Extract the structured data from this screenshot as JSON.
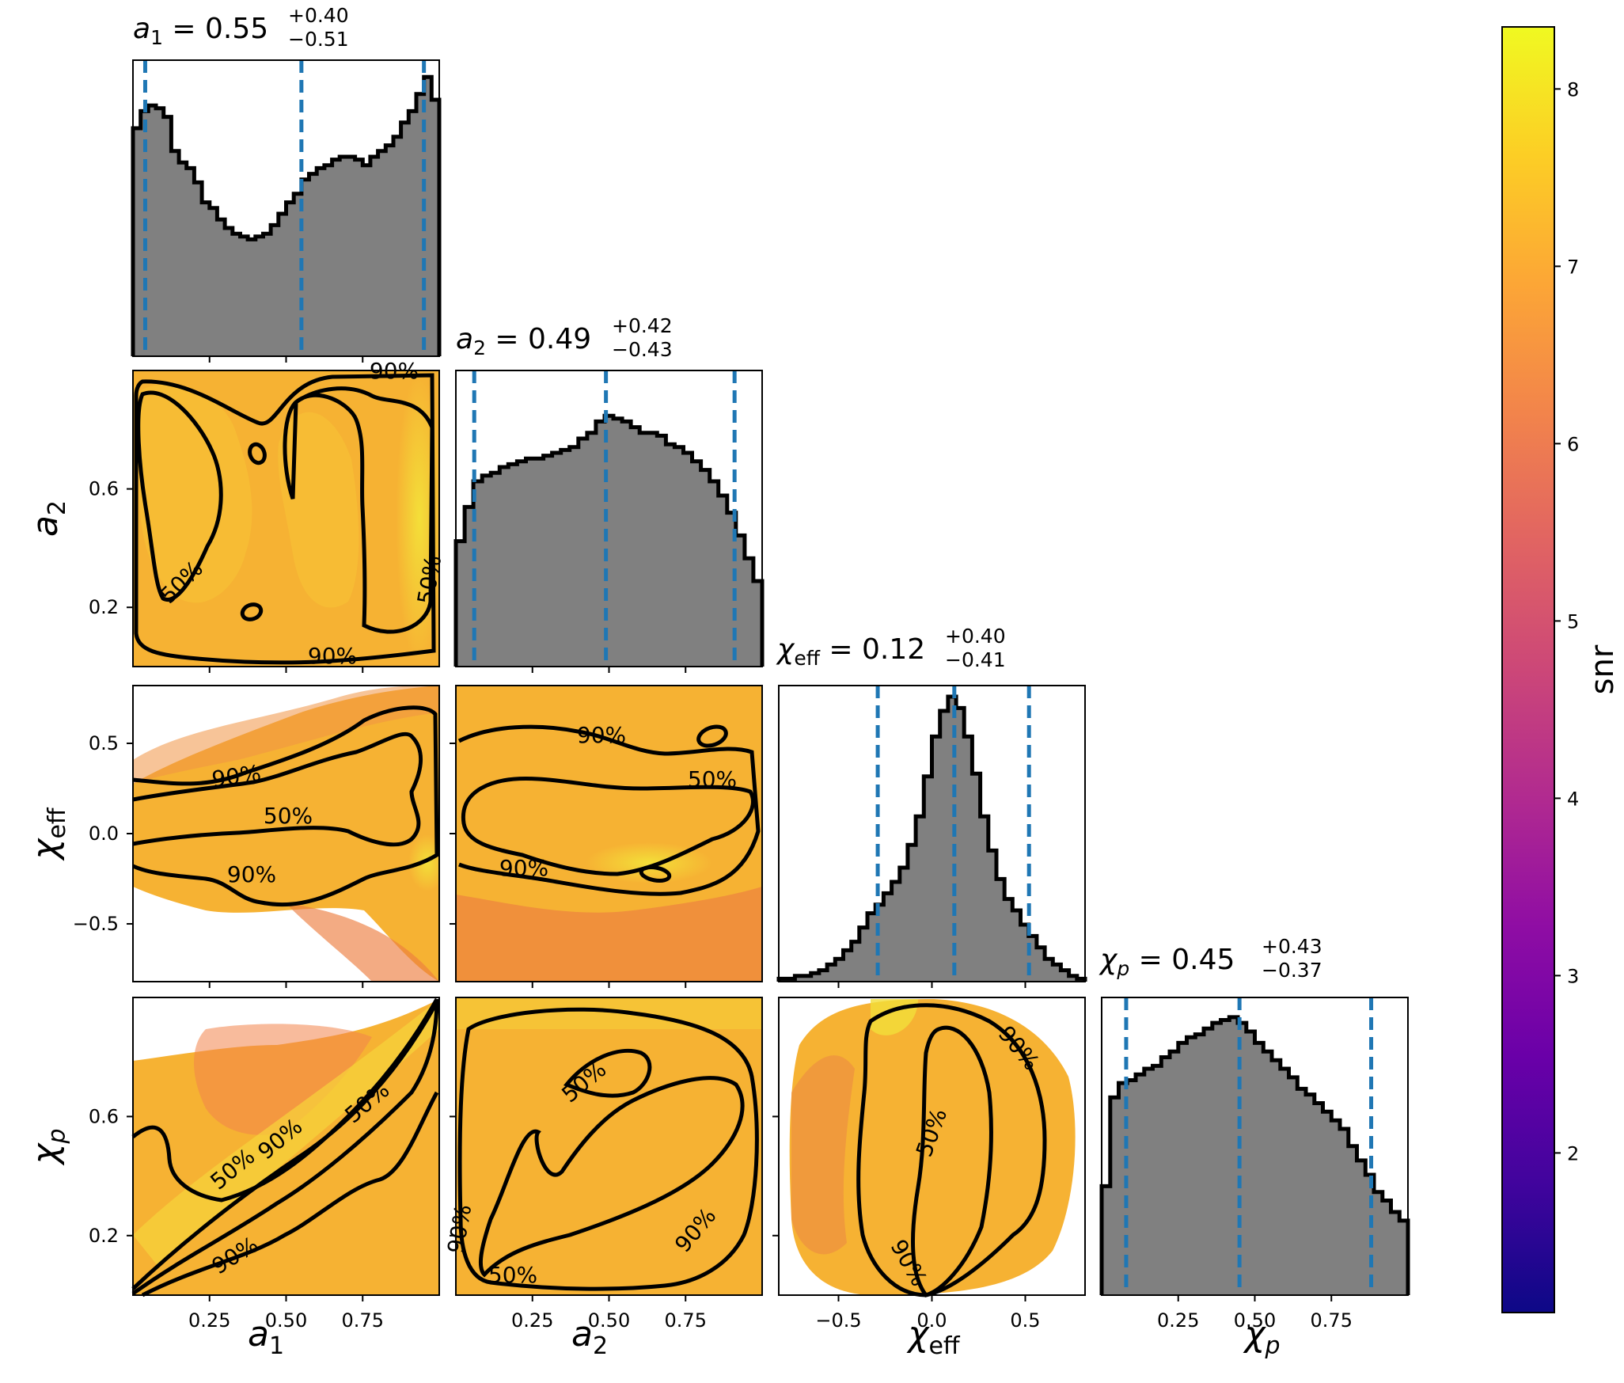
{
  "chart_data": {
    "type": "corner",
    "parameters": [
      {
        "key": "a1",
        "label_main": "a",
        "label_sub": "1",
        "title": {
          "median": "0.55",
          "plus": "+0.40",
          "minus": "−0.51"
        },
        "range": [
          0,
          1
        ],
        "quantiles": [
          0.04,
          0.55,
          0.95
        ]
      },
      {
        "key": "a2",
        "label_main": "a",
        "label_sub": "2",
        "title": {
          "median": "0.49",
          "plus": "+0.42",
          "minus": "−0.43"
        },
        "range": [
          0,
          1
        ],
        "quantiles": [
          0.06,
          0.49,
          0.91
        ]
      },
      {
        "key": "chi_eff",
        "label_main": "χ",
        "label_sub": "eff",
        "title": {
          "median": "0.12",
          "plus": "+0.40",
          "minus": "−0.41"
        },
        "range": [
          -0.82,
          0.82
        ],
        "quantiles": [
          -0.29,
          0.12,
          0.52
        ]
      },
      {
        "key": "chi_p",
        "label_main": "χ",
        "label_sub": "p",
        "title": {
          "median": "0.45",
          "plus": "+0.43",
          "minus": "−0.37"
        },
        "range": [
          0,
          1
        ],
        "quantiles": [
          0.08,
          0.45,
          0.88
        ]
      }
    ],
    "ticks": {
      "a1": [
        "0.25",
        "0.50",
        "0.75"
      ],
      "a2": [
        "0.25",
        "0.50",
        "0.75"
      ],
      "a2_y": [
        "0.2",
        "0.6"
      ],
      "chi_eff": [
        "−0.5",
        "0.0",
        "0.5"
      ],
      "chi_p": [
        "0.25",
        "0.50",
        "0.75"
      ],
      "chi_p_y": [
        "0.2",
        "0.6"
      ]
    },
    "histograms": {
      "a1": [
        0.8,
        0.86,
        0.88,
        0.87,
        0.84,
        0.72,
        0.68,
        0.66,
        0.61,
        0.54,
        0.52,
        0.48,
        0.45,
        0.43,
        0.42,
        0.41,
        0.42,
        0.43,
        0.46,
        0.5,
        0.54,
        0.57,
        0.62,
        0.64,
        0.66,
        0.67,
        0.69,
        0.7,
        0.7,
        0.69,
        0.67,
        0.7,
        0.72,
        0.74,
        0.77,
        0.82,
        0.86,
        0.92,
        0.98,
        0.9
      ],
      "a2": [
        0.44,
        0.56,
        0.65,
        0.67,
        0.68,
        0.7,
        0.71,
        0.72,
        0.73,
        0.73,
        0.74,
        0.75,
        0.76,
        0.77,
        0.8,
        0.82,
        0.86,
        0.88,
        0.87,
        0.86,
        0.84,
        0.82,
        0.82,
        0.81,
        0.78,
        0.77,
        0.75,
        0.72,
        0.69,
        0.65,
        0.6,
        0.54,
        0.46,
        0.38,
        0.3
      ],
      "chi_eff": [
        0.01,
        0.01,
        0.02,
        0.02,
        0.03,
        0.04,
        0.06,
        0.08,
        0.11,
        0.14,
        0.19,
        0.24,
        0.27,
        0.31,
        0.35,
        0.4,
        0.48,
        0.58,
        0.72,
        0.86,
        0.95,
        1.0,
        0.96,
        0.86,
        0.73,
        0.58,
        0.46,
        0.36,
        0.29,
        0.25,
        0.2,
        0.16,
        0.12,
        0.08,
        0.06,
        0.04,
        0.02,
        0.01
      ],
      "chi_p": [
        0.38,
        0.69,
        0.74,
        0.75,
        0.77,
        0.79,
        0.8,
        0.83,
        0.85,
        0.88,
        0.9,
        0.91,
        0.93,
        0.95,
        0.96,
        0.97,
        0.95,
        0.92,
        0.88,
        0.85,
        0.82,
        0.79,
        0.76,
        0.72,
        0.7,
        0.67,
        0.64,
        0.61,
        0.58,
        0.52,
        0.47,
        0.42,
        0.36,
        0.33,
        0.29,
        0.26
      ]
    },
    "contour_labels": [
      "50%",
      "90%"
    ],
    "colorbar": {
      "label": "snr",
      "range": [
        1.1,
        8.35
      ],
      "ticks": [
        "2",
        "3",
        "4",
        "5",
        "6",
        "7",
        "8"
      ],
      "colormap": "plasma"
    },
    "colors": {
      "hist_fill": "#808080",
      "quantile_line": "#1f77b4",
      "scatter_main": "#f9b42e",
      "scatter_outlier": "#e8793f",
      "contour": "#000000"
    }
  }
}
